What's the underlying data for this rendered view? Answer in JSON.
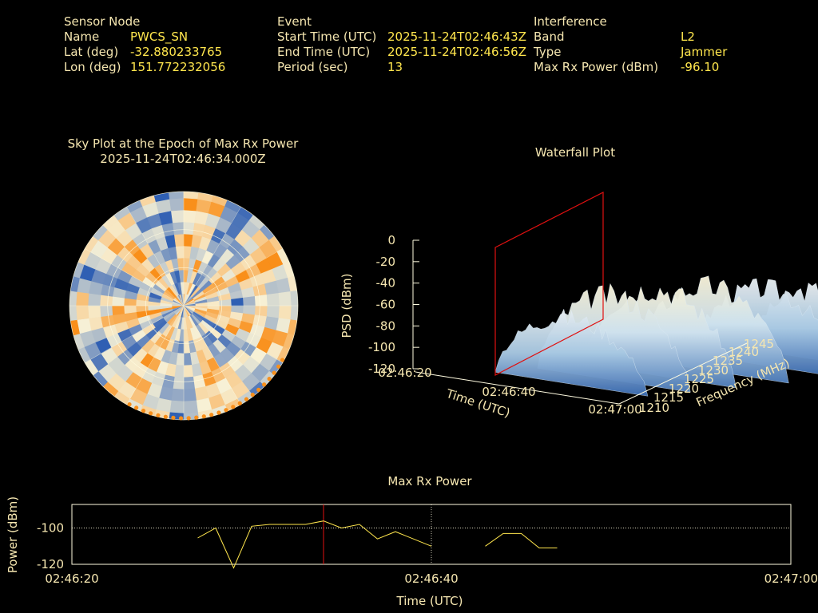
{
  "header": {
    "sensor": {
      "title": "Sensor Node",
      "name_label": "Name",
      "name_value": "PWCS_SN",
      "lat_label": "Lat (deg)",
      "lat_value": "-32.880233765",
      "lon_label": "Lon (deg)",
      "lon_value": "151.772232056"
    },
    "event": {
      "title": "Event",
      "start_label": "Start Time (UTC)",
      "start_value": "2025-11-24T02:46:43Z",
      "end_label": "End Time (UTC)",
      "end_value": "2025-11-24T02:46:56Z",
      "period_label": "Period (sec)",
      "period_value": "13"
    },
    "interference": {
      "title": "Interference",
      "band_label": "Band",
      "band_value": "L2",
      "type_label": "Type",
      "type_value": "Jammer",
      "power_label": "Max Rx Power (dBm)",
      "power_value": "-96.10"
    }
  },
  "sky_plot": {
    "title": "Sky Plot at the Epoch of Max Rx Power",
    "subtitle": "2025-11-24T02:46:34.000Z"
  },
  "chart_data": [
    {
      "type": "heatmap",
      "title": "Sky Plot at the Epoch of Max Rx Power",
      "subtitle": "2025-11-24T02:46:34.000Z",
      "projection": "polar",
      "rings": 3,
      "grid": true,
      "colors": {
        "low": "#2f5fb3",
        "mid": "#f7f1d6",
        "high": "#f98f1a",
        "ring": "#fffbe0"
      }
    },
    {
      "type": "area",
      "title": "Waterfall Plot",
      "xlabel": "Time (UTC)",
      "ylabel": "Frequency (MHz)",
      "zlabel": "PSD (dBm)",
      "x_ticks": [
        "02:46:20",
        "02:46:40",
        "02:47:00"
      ],
      "y_ticks": [
        1210,
        1215,
        1220,
        1225,
        1230,
        1235,
        1240,
        1245
      ],
      "z_ticks": [
        0,
        -20,
        -40,
        -60,
        -80,
        -100,
        -120
      ],
      "zlim": [
        -120,
        0
      ],
      "ylim": [
        1210,
        1245
      ],
      "marker_time": "02:46:34",
      "colors": {
        "surface_high": "#f7f1d6",
        "surface_low": "#3f73b6",
        "marker": "#e01010"
      }
    },
    {
      "type": "line",
      "title": "Max Rx Power",
      "xlabel": "Time (UTC)",
      "ylabel": "Power (dBm)",
      "x_ticks": [
        "02:46:20",
        "02:46:40",
        "02:47:00"
      ],
      "y_ticks": [
        -100,
        -120
      ],
      "xlim": [
        0,
        40
      ],
      "ylim": [
        -120,
        -87
      ],
      "grid": true,
      "marker_time": "02:46:34",
      "marker_x": 14,
      "colors": {
        "line": "#ffe64d",
        "marker": "#e01010",
        "frame": "#fffbe0"
      },
      "series": [
        {
          "x": [
            7,
            8,
            9,
            10,
            11,
            12,
            13,
            14,
            15,
            16,
            17,
            18,
            19,
            20
          ],
          "y": [
            -105.5,
            -100,
            -122,
            -99,
            -98,
            -98,
            -98,
            -96.1,
            -100,
            -98,
            -106,
            -102,
            -106,
            -110
          ]
        },
        {
          "x": [
            23,
            24,
            25,
            26,
            27
          ],
          "y": [
            -110,
            -103,
            -103,
            -111,
            -111
          ]
        }
      ]
    }
  ]
}
